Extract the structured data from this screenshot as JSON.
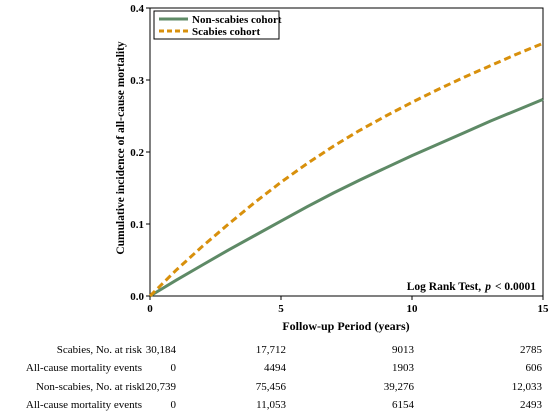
{
  "chart_data": {
    "type": "line",
    "xlabel": "Follow-up Period (years)",
    "ylabel": "Cumulative incidence of all-cause mortality",
    "xlim": [
      0,
      15
    ],
    "ylim": [
      0,
      0.4
    ],
    "x_ticks": [
      "0",
      "5",
      "10",
      "15"
    ],
    "y_ticks": [
      "0.0",
      "0.1",
      "0.2",
      "0.3",
      "0.4"
    ],
    "legend_position": "top-left",
    "grid": false,
    "annotation": {
      "prefix": "Log Rank Test,",
      "p_italic": "p",
      "suffix": "< 0.0001"
    },
    "series": [
      {
        "name": "Non-scabies cohort",
        "color": "#5e8a66",
        "style": "solid",
        "x": [
          0,
          1,
          2,
          3,
          4,
          5,
          6,
          7,
          8,
          9,
          10,
          11,
          12,
          13,
          14,
          15
        ],
        "y": [
          0,
          0.022,
          0.043,
          0.064,
          0.084,
          0.104,
          0.124,
          0.143,
          0.161,
          0.178,
          0.195,
          0.211,
          0.227,
          0.243,
          0.258,
          0.273
        ]
      },
      {
        "name": "Scabies cohort",
        "color": "#d8900c",
        "style": "dashed",
        "x": [
          0,
          1,
          2,
          3,
          4,
          5,
          6,
          7,
          8,
          9,
          10,
          11,
          12,
          13,
          14,
          15
        ],
        "y": [
          0,
          0.036,
          0.069,
          0.1,
          0.13,
          0.158,
          0.184,
          0.208,
          0.23,
          0.25,
          0.269,
          0.287,
          0.304,
          0.32,
          0.336,
          0.351
        ]
      }
    ]
  },
  "risk_table": {
    "columns_x": [
      0,
      5,
      10,
      15
    ],
    "rows": [
      {
        "label": "Scabies, No. at risk",
        "values": [
          "30,184",
          "17,712",
          "9013",
          "2785"
        ]
      },
      {
        "label": "All-cause mortality events",
        "values": [
          "0",
          "4494",
          "1903",
          "606"
        ]
      },
      {
        "label": "Non-scabies, No. at risk",
        "values": [
          "120,739",
          "75,456",
          "39,276",
          "12,033"
        ]
      },
      {
        "label": "All-cause mortality events",
        "values": [
          "0",
          "11,053",
          "6154",
          "2493"
        ]
      }
    ]
  }
}
